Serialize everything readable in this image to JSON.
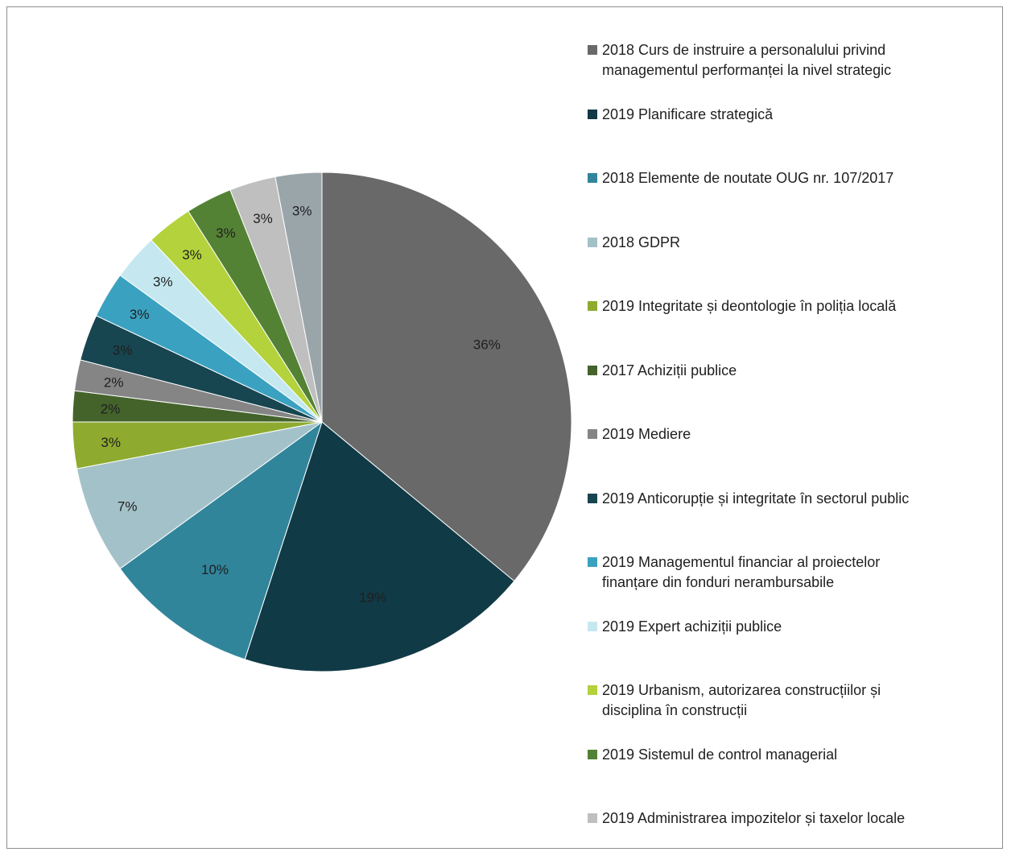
{
  "chart_data": {
    "type": "pie",
    "legend_position": "right",
    "slices": [
      {
        "label": "2018 Curs de instruire a personalului privind\nmanagementul performanței la nivel strategic",
        "value": 36,
        "display": "36%",
        "color": "#696969"
      },
      {
        "label": "2019 Planificare strategică",
        "value": 19,
        "display": "19%",
        "color": "#103a46"
      },
      {
        "label": "2018 Elemente de noutate OUG nr. 107/2017",
        "value": 10,
        "display": "10%",
        "color": "#31859b"
      },
      {
        "label": "2018 GDPR",
        "value": 7,
        "display": "7%",
        "color": "#a3c1c8"
      },
      {
        "label": "2019 Integritate și deontologie în poliția locală",
        "value": 3,
        "display": "3%",
        "color": "#8eab2f"
      },
      {
        "label": "2017 Achiziții publice",
        "value": 2,
        "display": "2%",
        "color": "#43632a"
      },
      {
        "label": "2019 Mediere",
        "value": 2,
        "display": "2%",
        "color": "#858585"
      },
      {
        "label": "2019 Anticorupție și integritate în sectorul public",
        "value": 3,
        "display": "3%",
        "color": "#174550"
      },
      {
        "label": "2019 Managementul financiar al proiectelor\nfinanțare din fonduri nerambursabile",
        "value": 3,
        "display": "3%",
        "color": "#3ba1c0"
      },
      {
        "label": "2019 Expert achiziții publice",
        "value": 3,
        "display": "3%",
        "color": "#c5e8f0"
      },
      {
        "label": "2019 Urbanism, autorizarea construcțiilor și\ndisciplina în construcții",
        "value": 3,
        "display": "3%",
        "color": "#b3d23c"
      },
      {
        "label": "2019 Sistemul de control managerial",
        "value": 3,
        "display": "3%",
        "color": "#548235"
      },
      {
        "label": "2019 Administrarea impozitelor și taxelor locale",
        "value": 3,
        "display": "3%",
        "color": "#bfbfbf"
      },
      {
        "label": "",
        "value": 3,
        "display": "3%",
        "color": "#9aa5aa"
      }
    ]
  }
}
